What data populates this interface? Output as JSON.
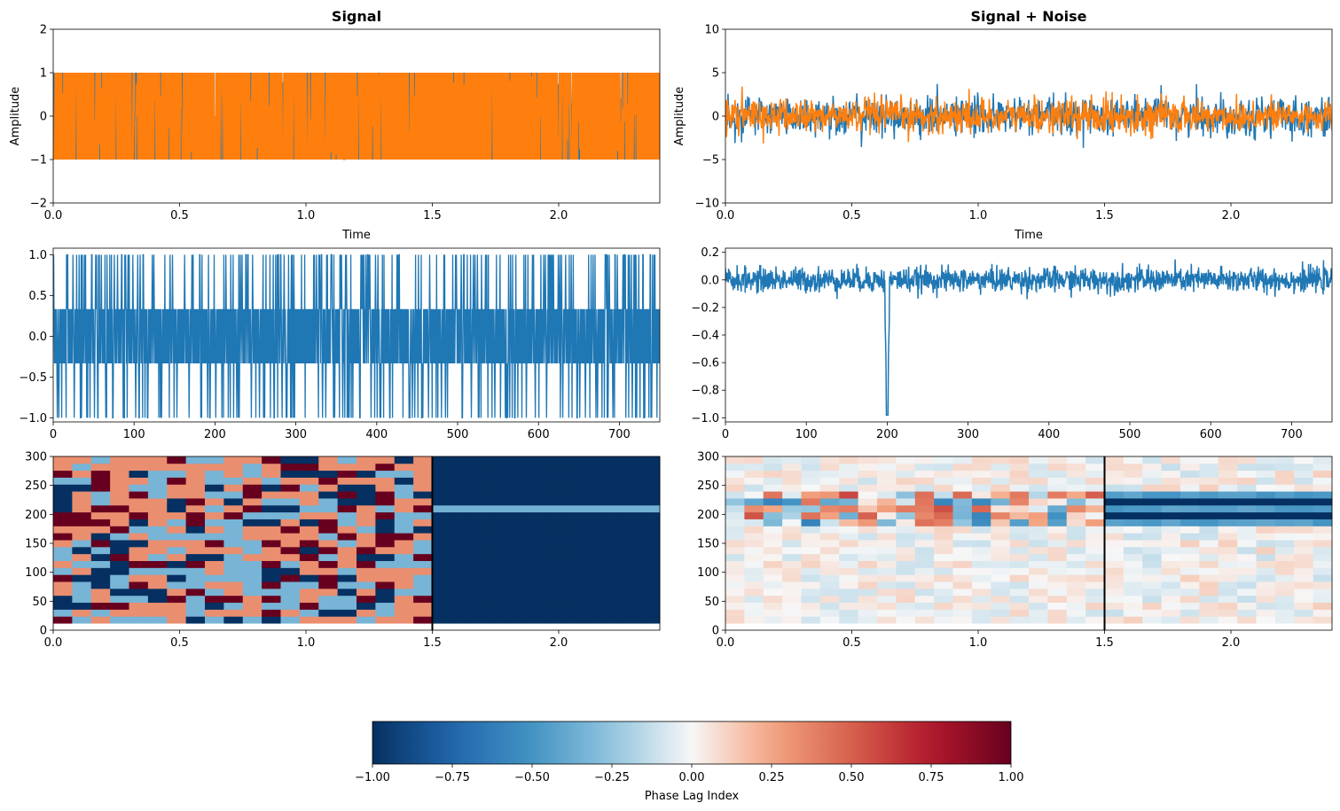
{
  "chart_data": [
    {
      "id": "signal",
      "type": "line",
      "title": "Signal",
      "xlabel": "Time",
      "ylabel": "Amplitude",
      "xlim": [
        0,
        2.4
      ],
      "ylim": [
        -2,
        2
      ],
      "xticks": [
        0.0,
        0.5,
        1.0,
        1.5,
        2.0
      ],
      "xtick_labels": [
        "0.0",
        "0.5",
        "1.0",
        "1.5",
        "2.0"
      ],
      "yticks": [
        -2,
        -1,
        0,
        1,
        2
      ],
      "ytick_labels": [
        "−2",
        "−1",
        "0",
        "1",
        "2"
      ],
      "series": [
        {
          "color": "#1f77b4",
          "kind": "binary-oscillation",
          "amplitude": 1
        },
        {
          "color": "#ff7f0e",
          "kind": "binary-oscillation",
          "amplitude": 1
        }
      ]
    },
    {
      "id": "signal-noise",
      "type": "line",
      "title": "Signal + Noise",
      "xlabel": "Time",
      "ylabel": "Amplitude",
      "xlim": [
        0,
        2.4
      ],
      "ylim": [
        -10,
        10
      ],
      "xticks": [
        0.0,
        0.5,
        1.0,
        1.5,
        2.0
      ],
      "xtick_labels": [
        "0.0",
        "0.5",
        "1.0",
        "1.5",
        "2.0"
      ],
      "yticks": [
        -10,
        -5,
        0,
        5,
        10
      ],
      "ytick_labels": [
        "−10",
        "−5",
        "0",
        "5",
        "10"
      ],
      "series": [
        {
          "color": "#1f77b4",
          "kind": "noise",
          "std": 1.1
        },
        {
          "color": "#ff7f0e",
          "kind": "noise",
          "std": 1.0
        }
      ]
    },
    {
      "id": "pli-signal",
      "type": "line",
      "title": "",
      "xlabel": "",
      "ylabel": "",
      "xlim": [
        0,
        750
      ],
      "ylim": [
        -1.05,
        1.08
      ],
      "xticks": [
        0,
        100,
        200,
        300,
        400,
        500,
        600,
        700
      ],
      "xtick_labels": [
        "0",
        "100",
        "200",
        "300",
        "400",
        "500",
        "600",
        "700"
      ],
      "yticks": [
        -1.0,
        -0.5,
        0.0,
        0.5,
        1.0
      ],
      "ytick_labels": [
        "−1.0",
        "−0.5",
        "0.0",
        "0.5",
        "1.0"
      ],
      "series": [
        {
          "color": "#1f77b4",
          "kind": "levels",
          "levels": [
            -1,
            -0.333,
            0.333,
            1
          ]
        }
      ]
    },
    {
      "id": "pli-noise",
      "type": "line",
      "title": "",
      "xlabel": "",
      "ylabel": "",
      "xlim": [
        0,
        750
      ],
      "ylim": [
        -1.03,
        0.23
      ],
      "xticks": [
        0,
        100,
        200,
        300,
        400,
        500,
        600,
        700
      ],
      "xtick_labels": [
        "0",
        "100",
        "200",
        "300",
        "400",
        "500",
        "600",
        "700"
      ],
      "yticks": [
        -1.0,
        -0.8,
        -0.6,
        -0.4,
        -0.2,
        0.0,
        0.2
      ],
      "ytick_labels": [
        "−1.0",
        "−0.8",
        "−0.6",
        "−0.4",
        "−0.2",
        "0.0",
        "0.2"
      ],
      "series": [
        {
          "color": "#1f77b4",
          "kind": "noise-with-dip",
          "std": 0.045,
          "dip_x": 200,
          "dip_y": -0.98
        }
      ]
    },
    {
      "id": "heatmap-signal",
      "type": "heatmap",
      "title": "",
      "xlim": [
        0,
        2.4
      ],
      "ylim": [
        0,
        300
      ],
      "xticks": [
        0.0,
        0.5,
        1.0,
        1.5,
        2.0
      ],
      "xtick_labels": [
        "0.0",
        "0.5",
        "1.0",
        "1.5",
        "2.0"
      ],
      "yticks": [
        0,
        50,
        100,
        150,
        200,
        250,
        300
      ],
      "ytick_labels": [
        "0",
        "50",
        "100",
        "150",
        "200",
        "250",
        "300"
      ],
      "colormap": "RdBu_r",
      "vmin": -1,
      "vmax": 1,
      "rows_y_range": [
        12,
        300
      ],
      "vline_x": 1.5
    },
    {
      "id": "heatmap-noise",
      "type": "heatmap",
      "title": "",
      "xlim": [
        0,
        2.4
      ],
      "ylim": [
        0,
        300
      ],
      "xticks": [
        0.0,
        0.5,
        1.0,
        1.5,
        2.0
      ],
      "xtick_labels": [
        "0.0",
        "0.5",
        "1.0",
        "1.5",
        "2.0"
      ],
      "yticks": [
        0,
        50,
        100,
        150,
        200,
        250,
        300
      ],
      "ytick_labels": [
        "0",
        "50",
        "100",
        "150",
        "200",
        "250",
        "300"
      ],
      "colormap": "RdBu_r",
      "vmin": -1,
      "vmax": 1,
      "rows_y_range": [
        12,
        300
      ],
      "vline_x": 1.5
    }
  ],
  "colorbar": {
    "label": "Phase Lag Index",
    "vmin": -1,
    "vmax": 1,
    "ticks": [
      -1.0,
      -0.75,
      -0.5,
      -0.25,
      0.0,
      0.25,
      0.5,
      0.75,
      1.0
    ],
    "tick_labels": [
      "−1.00",
      "−0.75",
      "−0.50",
      "−0.25",
      "0.00",
      "0.25",
      "0.50",
      "0.75",
      "1.00"
    ]
  }
}
